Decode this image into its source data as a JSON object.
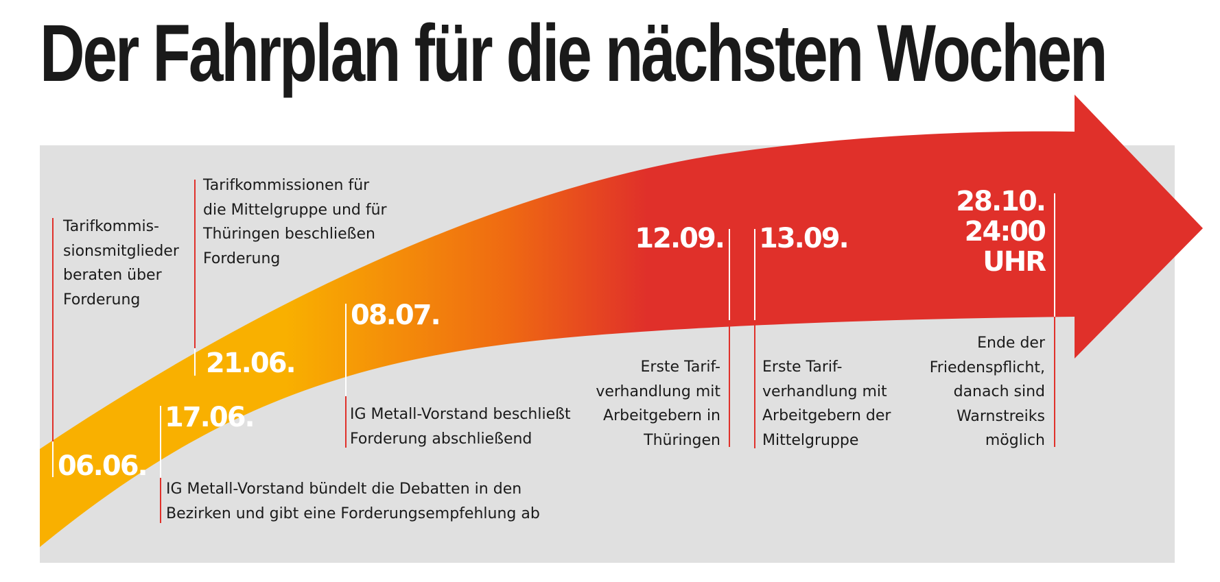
{
  "title": "Der Fahrplan für die nächsten Wochen",
  "colors": {
    "start": "#f9b000",
    "mid": "#ef6a12",
    "end": "#e0302a",
    "panel": "#e0e0e0",
    "text": "#1a1a1a"
  },
  "milestones": [
    {
      "date": "06.06.",
      "text": "Tarifkommis-\nsionsmitglieder\nberaten über\nForderung"
    },
    {
      "date": "17.06.",
      "text": "IG Metall-Vorstand bündelt die Debatten in den\nBezirken und gibt eine Forderungsempfehlung ab"
    },
    {
      "date": "21.06.",
      "text": "Tarifkommissionen für\ndie Mittelgruppe und für\nThüringen beschließen\nForderung"
    },
    {
      "date": "08.07.",
      "text": "IG Metall-Vorstand beschließt\nForderung abschließend"
    },
    {
      "date": "12.09.",
      "text": "Erste Tarif-\nverhandlung mit\nArbeitgebern in\nThüringen"
    },
    {
      "date": "13.09.",
      "text": "Erste Tarif-\nverhandlung mit\nArbeitgebern der\nMittelgruppe"
    },
    {
      "date": "28.10.\n24:00\nUHR",
      "text": "Ende der\nFriedenspflicht,\ndanach sind\nWarnstreiks\nmöglich"
    }
  ]
}
